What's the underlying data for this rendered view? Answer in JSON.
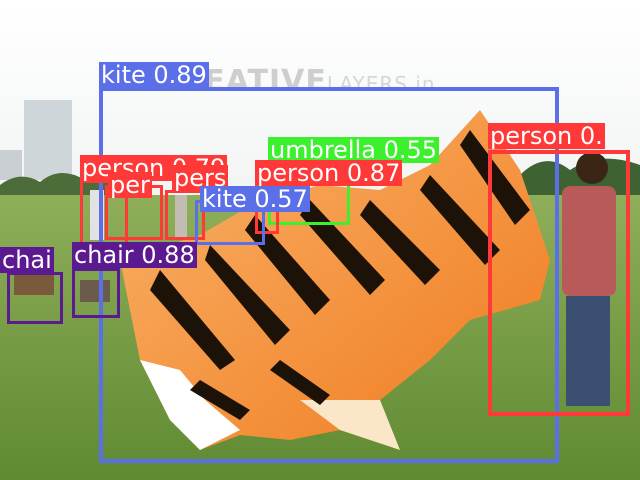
{
  "watermark": {
    "brand": "REATIVE",
    "suffix": "LAYERS.in"
  },
  "colors": {
    "person": "#ff3838",
    "kite": "#5b6fe8",
    "umbrella": "#3cf02e",
    "chair": "#5c1a91"
  },
  "detections": [
    {
      "label": "kite 0.89",
      "class": "kite"
    },
    {
      "label": "person 0.",
      "class": "person"
    },
    {
      "label": "umbrella 0.55",
      "class": "umbrella"
    },
    {
      "label": "person 0.87",
      "class": "person"
    },
    {
      "label": "person 0.79",
      "class": "person"
    },
    {
      "label": "pers",
      "class": "person"
    },
    {
      "label": "kite 0.57",
      "class": "kite"
    },
    {
      "label": "per",
      "class": "person"
    },
    {
      "label": "chair 0.88",
      "class": "chair"
    },
    {
      "label": "chai",
      "class": "chair"
    }
  ]
}
